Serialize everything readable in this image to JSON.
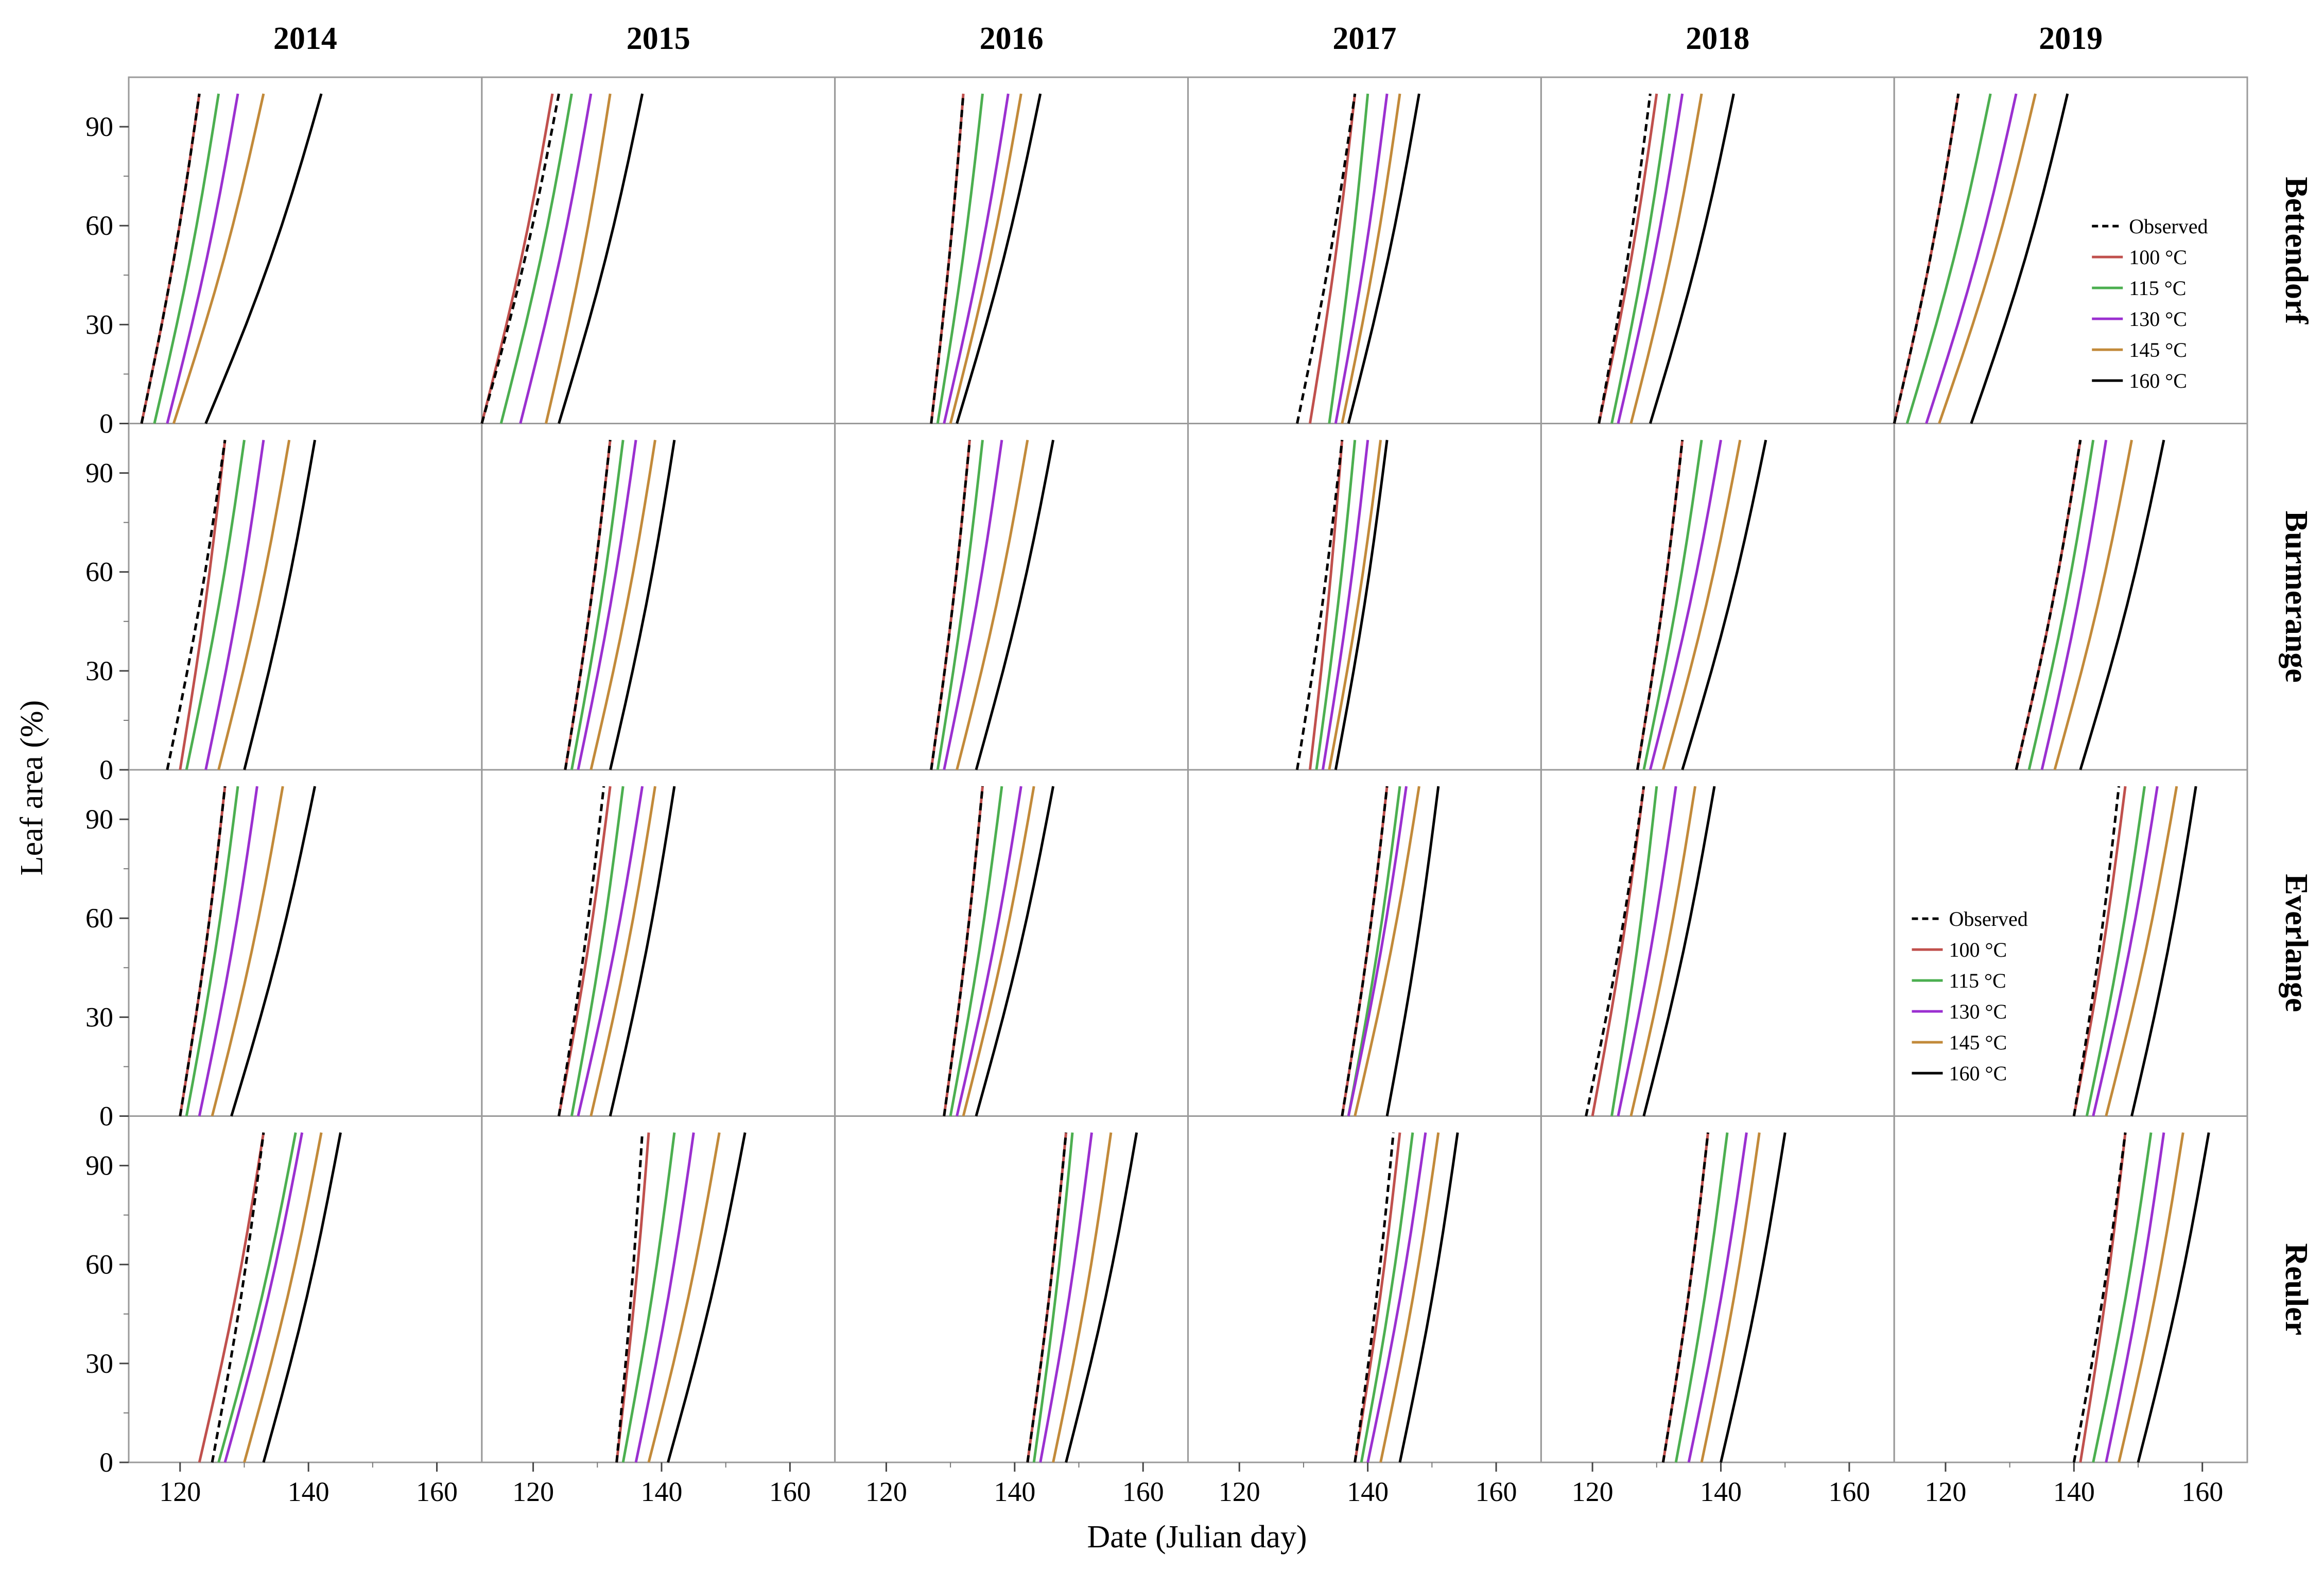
{
  "chart_data": {
    "type": "line",
    "xlabel": "Date (Julian day)",
    "ylabel": "Leaf area (%)",
    "xlim": [
      112,
      167
    ],
    "ylim": [
      0,
      105
    ],
    "x_ticks": [
      120,
      140,
      160
    ],
    "y_ticks": [
      0,
      30,
      60,
      90
    ],
    "columns": [
      "2014",
      "2015",
      "2016",
      "2017",
      "2018",
      "2019"
    ],
    "rows": [
      "Bettendorf",
      "Burmerange",
      "Everlange",
      "Reuler"
    ],
    "series_names": [
      "Observed",
      "100 °C",
      "115 °C",
      "130 °C",
      "145 °C",
      "160 °C"
    ],
    "series_colors": [
      "#000000",
      "#c0504d",
      "#4caf50",
      "#9b30d0",
      "#c28a3a",
      "#000000"
    ],
    "series_dashed": [
      true,
      false,
      false,
      false,
      false,
      false
    ],
    "legend": {
      "placement": "right",
      "panels": [
        "Bettendorf-2019",
        "Everlange-2019"
      ]
    },
    "panels": [
      {
        "row": "Bettendorf",
        "col": "2014",
        "obs": [
          114,
          123
        ],
        "model": [
          [
            114,
            123
          ],
          [
            116,
            126
          ],
          [
            118,
            129
          ],
          [
            119,
            133
          ],
          [
            124,
            142
          ]
        ]
      },
      {
        "row": "Bettendorf",
        "col": "2015",
        "obs": [
          112,
          124
        ],
        "model": [
          [
            112,
            123
          ],
          [
            115,
            126
          ],
          [
            118,
            129
          ],
          [
            122,
            132
          ],
          [
            124,
            137
          ]
        ]
      },
      {
        "row": "Bettendorf",
        "col": "2016",
        "obs": [
          127,
          132
        ],
        "model": [
          [
            127,
            132
          ],
          [
            128,
            135
          ],
          [
            129,
            139
          ],
          [
            130,
            141
          ],
          [
            131,
            144
          ]
        ]
      },
      {
        "row": "Bettendorf",
        "col": "2017",
        "obs": [
          129,
          138
        ],
        "model": [
          [
            131,
            138
          ],
          [
            134,
            140
          ],
          [
            135,
            143
          ],
          [
            136,
            145
          ],
          [
            137,
            148
          ]
        ]
      },
      {
        "row": "Bettendorf",
        "col": "2018",
        "obs": [
          121,
          129
        ],
        "model": [
          [
            121,
            130
          ],
          [
            123,
            132
          ],
          [
            124,
            134
          ],
          [
            126,
            137
          ],
          [
            129,
            142
          ]
        ]
      },
      {
        "row": "Bettendorf",
        "col": "2019",
        "obs": [
          112,
          122
        ],
        "model": [
          [
            112,
            122
          ],
          [
            114,
            127
          ],
          [
            117,
            131
          ],
          [
            119,
            134
          ],
          [
            124,
            139
          ]
        ]
      },
      {
        "row": "Burmerange",
        "col": "2014",
        "obs": [
          118,
          127
        ],
        "model": [
          [
            120,
            127
          ],
          [
            121,
            130
          ],
          [
            124,
            133
          ],
          [
            126,
            137
          ],
          [
            130,
            141
          ]
        ]
      },
      {
        "row": "Burmerange",
        "col": "2015",
        "obs": [
          125,
          132
        ],
        "model": [
          [
            125,
            132
          ],
          [
            126,
            134
          ],
          [
            127,
            136
          ],
          [
            129,
            139
          ],
          [
            132,
            142
          ]
        ]
      },
      {
        "row": "Burmerange",
        "col": "2016",
        "obs": [
          127,
          133
        ],
        "model": [
          [
            127,
            133
          ],
          [
            128,
            135
          ],
          [
            129,
            138
          ],
          [
            131,
            142
          ],
          [
            134,
            146
          ]
        ]
      },
      {
        "row": "Burmerange",
        "col": "2017",
        "obs": [
          129,
          136
        ],
        "model": [
          [
            131,
            136
          ],
          [
            132,
            138
          ],
          [
            133,
            140
          ],
          [
            134,
            142
          ],
          [
            135,
            143
          ]
        ]
      },
      {
        "row": "Burmerange",
        "col": "2018",
        "obs": [
          127,
          134
        ],
        "model": [
          [
            127,
            134
          ],
          [
            128,
            137
          ],
          [
            129,
            140
          ],
          [
            131,
            143
          ],
          [
            134,
            147
          ]
        ]
      },
      {
        "row": "Burmerange",
        "col": "2019",
        "obs": [
          131,
          141
        ],
        "model": [
          [
            131,
            141
          ],
          [
            133,
            143
          ],
          [
            135,
            145
          ],
          [
            137,
            149
          ],
          [
            141,
            154
          ]
        ]
      },
      {
        "row": "Everlange",
        "col": "2014",
        "obs": [
          120,
          127
        ],
        "model": [
          [
            120,
            127
          ],
          [
            121,
            129
          ],
          [
            123,
            132
          ],
          [
            125,
            136
          ],
          [
            128,
            141
          ]
        ]
      },
      {
        "row": "Everlange",
        "col": "2015",
        "obs": [
          124,
          131
        ],
        "model": [
          [
            124,
            132
          ],
          [
            126,
            134
          ],
          [
            127,
            137
          ],
          [
            129,
            139
          ],
          [
            132,
            142
          ]
        ]
      },
      {
        "row": "Everlange",
        "col": "2016",
        "obs": [
          129,
          135
        ],
        "model": [
          [
            129,
            135
          ],
          [
            130,
            138
          ],
          [
            131,
            141
          ],
          [
            132,
            143
          ],
          [
            134,
            146
          ]
        ]
      },
      {
        "row": "Everlange",
        "col": "2017",
        "obs": [
          136,
          143
        ],
        "model": [
          [
            136,
            143
          ],
          [
            137,
            145
          ],
          [
            137,
            146
          ],
          [
            138,
            148
          ],
          [
            143,
            151
          ]
        ]
      },
      {
        "row": "Everlange",
        "col": "2018",
        "obs": [
          119,
          128
        ],
        "model": [
          [
            120,
            128
          ],
          [
            123,
            130
          ],
          [
            124,
            133
          ],
          [
            126,
            136
          ],
          [
            128,
            139
          ]
        ]
      },
      {
        "row": "Everlange",
        "col": "2019",
        "obs": [
          140,
          147
        ],
        "model": [
          [
            140,
            148
          ],
          [
            142,
            151
          ],
          [
            143,
            153
          ],
          [
            145,
            156
          ],
          [
            149,
            159
          ]
        ]
      },
      {
        "row": "Reuler",
        "col": "2014",
        "obs": [
          125,
          133
        ],
        "model": [
          [
            123,
            133
          ],
          [
            126,
            138
          ],
          [
            127,
            139
          ],
          [
            130,
            142
          ],
          [
            133,
            145
          ]
        ]
      },
      {
        "row": "Reuler",
        "col": "2015",
        "obs": [
          133,
          137
        ],
        "model": [
          [
            133,
            138
          ],
          [
            134,
            142
          ],
          [
            136,
            145
          ],
          [
            138,
            149
          ],
          [
            141,
            153
          ]
        ]
      },
      {
        "row": "Reuler",
        "col": "2016",
        "obs": [
          142,
          148
        ],
        "model": [
          [
            142,
            148
          ],
          [
            143,
            149
          ],
          [
            144,
            152
          ],
          [
            146,
            155
          ],
          [
            148,
            159
          ]
        ]
      },
      {
        "row": "Reuler",
        "col": "2017",
        "obs": [
          138,
          144
        ],
        "model": [
          [
            138,
            145
          ],
          [
            139,
            147
          ],
          [
            140,
            149
          ],
          [
            142,
            151
          ],
          [
            145,
            154
          ]
        ]
      },
      {
        "row": "Reuler",
        "col": "2018",
        "obs": [
          131,
          138
        ],
        "model": [
          [
            131,
            138
          ],
          [
            133,
            141
          ],
          [
            135,
            144
          ],
          [
            137,
            146
          ],
          [
            140,
            150
          ]
        ]
      },
      {
        "row": "Reuler",
        "col": "2019",
        "obs": [
          140,
          148
        ],
        "model": [
          [
            141,
            148
          ],
          [
            143,
            152
          ],
          [
            145,
            154
          ],
          [
            147,
            157
          ],
          [
            150,
            161
          ]
        ]
      }
    ]
  }
}
